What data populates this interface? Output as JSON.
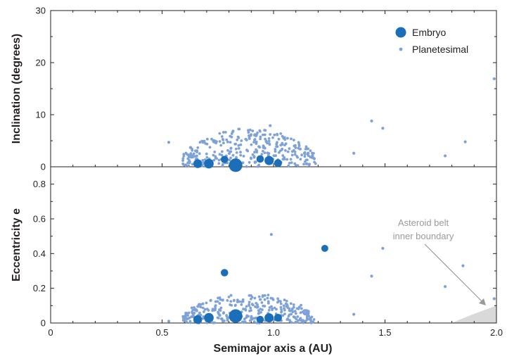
{
  "colors": {
    "embryo": "#1a6fb8",
    "planetesimal": "#7ea2d8",
    "axis": "#231f20",
    "annotation": "#9a9a9a",
    "belt_fill": "#d9d9d9"
  },
  "chart_data": [
    {
      "type": "scatter",
      "panel": "top",
      "xlabel": "",
      "ylabel": "Inclination (degrees)",
      "xlim": [
        0,
        2.0
      ],
      "ylim": [
        0,
        30
      ],
      "yticks": [
        "0",
        "10",
        "20",
        "30"
      ],
      "legend": {
        "placement": "top-right",
        "entries": [
          {
            "name": "Embryo",
            "marker": "large-dark-circle"
          },
          {
            "name": "Planetesimal",
            "marker": "small-light-circle"
          }
        ]
      },
      "series": [
        {
          "name": "Embryo",
          "points": [
            {
              "x": 0.66,
              "y": 0.6,
              "size": 1.0
            },
            {
              "x": 0.71,
              "y": 0.6,
              "size": 1.1
            },
            {
              "x": 0.78,
              "y": 1.4,
              "size": 0.85
            },
            {
              "x": 0.83,
              "y": 0.3,
              "size": 1.55
            },
            {
              "x": 0.94,
              "y": 1.5,
              "size": 0.85
            },
            {
              "x": 0.98,
              "y": 1.2,
              "size": 1.05
            },
            {
              "x": 1.02,
              "y": 0.7,
              "size": 0.9
            }
          ]
        },
        {
          "name": "Planetesimal",
          "points": [
            {
              "x": 0.53,
              "y": 4.7
            },
            {
              "x": 0.985,
              "y": 7.9
            },
            {
              "x": 1.36,
              "y": 2.6
            },
            {
              "x": 1.44,
              "y": 8.8
            },
            {
              "x": 1.49,
              "y": 7.4
            },
            {
              "x": 1.77,
              "y": 2.1
            },
            {
              "x": 1.86,
              "y": 4.8
            },
            {
              "x": 1.99,
              "y": 16.9
            }
          ],
          "cloud": {
            "x_range": [
              0.59,
              1.19
            ],
            "y_max": 7.5,
            "count": 330,
            "seed": 17
          }
        }
      ]
    },
    {
      "type": "scatter",
      "panel": "bottom",
      "xlabel": "Semimajor axis a (AU)",
      "ylabel": "Eccentricity e",
      "xlim": [
        0,
        2.0
      ],
      "ylim": [
        0,
        0.9
      ],
      "xticks": [
        "0",
        "0.5",
        "1.0",
        "1.5",
        "2.0"
      ],
      "yticks": [
        "0",
        "0.2",
        "0.4",
        "0.6",
        "0.8"
      ],
      "annotation": {
        "text": [
          "Asteroid belt",
          "inner boundary"
        ],
        "region": "shaded wedge under q = 1.8 AU, near a = 2.0 AU"
      },
      "series": [
        {
          "name": "Embryo",
          "points": [
            {
              "x": 0.66,
              "y": 0.02,
              "size": 1.0
            },
            {
              "x": 0.71,
              "y": 0.03,
              "size": 1.1
            },
            {
              "x": 0.78,
              "y": 0.29,
              "size": 0.85
            },
            {
              "x": 0.83,
              "y": 0.04,
              "size": 1.55
            },
            {
              "x": 0.94,
              "y": 0.02,
              "size": 0.85
            },
            {
              "x": 0.98,
              "y": 0.03,
              "size": 1.05
            },
            {
              "x": 1.02,
              "y": 0.03,
              "size": 0.9
            },
            {
              "x": 1.23,
              "y": 0.43,
              "size": 0.8
            }
          ]
        },
        {
          "name": "Planetesimal",
          "points": [
            {
              "x": 0.53,
              "y": 0.01
            },
            {
              "x": 0.99,
              "y": 0.51
            },
            {
              "x": 1.36,
              "y": 0.05
            },
            {
              "x": 1.44,
              "y": 0.27
            },
            {
              "x": 1.49,
              "y": 0.43
            },
            {
              "x": 1.77,
              "y": 0.21
            },
            {
              "x": 1.85,
              "y": 0.33
            },
            {
              "x": 1.99,
              "y": 0.14
            }
          ],
          "cloud": {
            "x_range": [
              0.59,
              1.19
            ],
            "y_max": 0.17,
            "count": 330,
            "seed": 29
          }
        }
      ]
    }
  ]
}
